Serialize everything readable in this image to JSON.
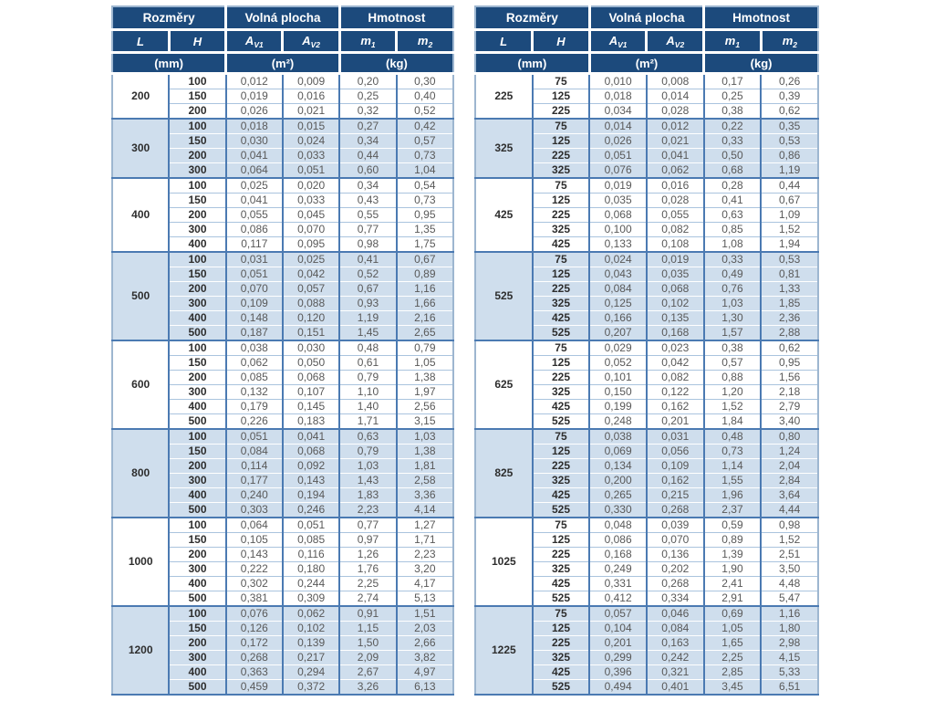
{
  "colors": {
    "header_bg": "#1c4a7c",
    "header_text": "#ffffff",
    "row_alt_bg": "#cfdeed",
    "row_bg": "#ffffff",
    "grid_medium": "#4b7ab2",
    "grid_light": "#aac4de",
    "outer_border": "#9db6d0",
    "value_text": "#595959",
    "bold_text": "#2e2e2e"
  },
  "header": {
    "rozmery": "Rozměry",
    "volna_plocha": "Volná plocha",
    "hmotnost": "Hmotnost",
    "l": "L",
    "h": "H",
    "a": "A",
    "sub_v1": "V1",
    "sub_v2": "V2",
    "m": "m",
    "sub_1": "1",
    "sub_2": "2",
    "unit_mm": "(mm)",
    "unit_m2": "(m²)",
    "unit_kg": "(kg)"
  },
  "tables": [
    {
      "side": "left",
      "groups": [
        {
          "l": "200",
          "rows": [
            [
              "100",
              "0,012",
              "0,009",
              "0,20",
              "0,30"
            ],
            [
              "150",
              "0,019",
              "0,016",
              "0,25",
              "0,40"
            ],
            [
              "200",
              "0,026",
              "0,021",
              "0,32",
              "0,52"
            ]
          ]
        },
        {
          "l": "300",
          "rows": [
            [
              "100",
              "0,018",
              "0,015",
              "0,27",
              "0,42"
            ],
            [
              "150",
              "0,030",
              "0,024",
              "0,34",
              "0,57"
            ],
            [
              "200",
              "0,041",
              "0,033",
              "0,44",
              "0,73"
            ],
            [
              "300",
              "0,064",
              "0,051",
              "0,60",
              "1,04"
            ]
          ]
        },
        {
          "l": "400",
          "rows": [
            [
              "100",
              "0,025",
              "0,020",
              "0,34",
              "0,54"
            ],
            [
              "150",
              "0,041",
              "0,033",
              "0,43",
              "0,73"
            ],
            [
              "200",
              "0,055",
              "0,045",
              "0,55",
              "0,95"
            ],
            [
              "300",
              "0,086",
              "0,070",
              "0,77",
              "1,35"
            ],
            [
              "400",
              "0,117",
              "0,095",
              "0,98",
              "1,75"
            ]
          ]
        },
        {
          "l": "500",
          "rows": [
            [
              "100",
              "0,031",
              "0,025",
              "0,41",
              "0,67"
            ],
            [
              "150",
              "0,051",
              "0,042",
              "0,52",
              "0,89"
            ],
            [
              "200",
              "0,070",
              "0,057",
              "0,67",
              "1,16"
            ],
            [
              "300",
              "0,109",
              "0,088",
              "0,93",
              "1,66"
            ],
            [
              "400",
              "0,148",
              "0,120",
              "1,19",
              "2,16"
            ],
            [
              "500",
              "0,187",
              "0,151",
              "1,45",
              "2,65"
            ]
          ]
        },
        {
          "l": "600",
          "rows": [
            [
              "100",
              "0,038",
              "0,030",
              "0,48",
              "0,79"
            ],
            [
              "150",
              "0,062",
              "0,050",
              "0,61",
              "1,05"
            ],
            [
              "200",
              "0,085",
              "0,068",
              "0,79",
              "1,38"
            ],
            [
              "300",
              "0,132",
              "0,107",
              "1,10",
              "1,97"
            ],
            [
              "400",
              "0,179",
              "0,145",
              "1,40",
              "2,56"
            ],
            [
              "500",
              "0,226",
              "0,183",
              "1,71",
              "3,15"
            ]
          ]
        },
        {
          "l": "800",
          "rows": [
            [
              "100",
              "0,051",
              "0,041",
              "0,63",
              "1,03"
            ],
            [
              "150",
              "0,084",
              "0,068",
              "0,79",
              "1,38"
            ],
            [
              "200",
              "0,114",
              "0,092",
              "1,03",
              "1,81"
            ],
            [
              "300",
              "0,177",
              "0,143",
              "1,43",
              "2,58"
            ],
            [
              "400",
              "0,240",
              "0,194",
              "1,83",
              "3,36"
            ],
            [
              "500",
              "0,303",
              "0,246",
              "2,23",
              "4,14"
            ]
          ]
        },
        {
          "l": "1000",
          "rows": [
            [
              "100",
              "0,064",
              "0,051",
              "0,77",
              "1,27"
            ],
            [
              "150",
              "0,105",
              "0,085",
              "0,97",
              "1,71"
            ],
            [
              "200",
              "0,143",
              "0,116",
              "1,26",
              "2,23"
            ],
            [
              "300",
              "0,222",
              "0,180",
              "1,76",
              "3,20"
            ],
            [
              "400",
              "0,302",
              "0,244",
              "2,25",
              "4,17"
            ],
            [
              "500",
              "0,381",
              "0,309",
              "2,74",
              "5,13"
            ]
          ]
        },
        {
          "l": "1200",
          "rows": [
            [
              "100",
              "0,076",
              "0,062",
              "0,91",
              "1,51"
            ],
            [
              "150",
              "0,126",
              "0,102",
              "1,15",
              "2,03"
            ],
            [
              "200",
              "0,172",
              "0,139",
              "1,50",
              "2,66"
            ],
            [
              "300",
              "0,268",
              "0,217",
              "2,09",
              "3,82"
            ],
            [
              "400",
              "0,363",
              "0,294",
              "2,67",
              "4,97"
            ],
            [
              "500",
              "0,459",
              "0,372",
              "3,26",
              "6,13"
            ]
          ]
        }
      ]
    },
    {
      "side": "right",
      "groups": [
        {
          "l": "225",
          "rows": [
            [
              "75",
              "0,010",
              "0,008",
              "0,17",
              "0,26"
            ],
            [
              "125",
              "0,018",
              "0,014",
              "0,25",
              "0,39"
            ],
            [
              "225",
              "0,034",
              "0,028",
              "0,38",
              "0,62"
            ]
          ]
        },
        {
          "l": "325",
          "rows": [
            [
              "75",
              "0,014",
              "0,012",
              "0,22",
              "0,35"
            ],
            [
              "125",
              "0,026",
              "0,021",
              "0,33",
              "0,53"
            ],
            [
              "225",
              "0,051",
              "0,041",
              "0,50",
              "0,86"
            ],
            [
              "325",
              "0,076",
              "0,062",
              "0,68",
              "1,19"
            ]
          ]
        },
        {
          "l": "425",
          "rows": [
            [
              "75",
              "0,019",
              "0,016",
              "0,28",
              "0,44"
            ],
            [
              "125",
              "0,035",
              "0,028",
              "0,41",
              "0,67"
            ],
            [
              "225",
              "0,068",
              "0,055",
              "0,63",
              "1,09"
            ],
            [
              "325",
              "0,100",
              "0,082",
              "0,85",
              "1,52"
            ],
            [
              "425",
              "0,133",
              "0,108",
              "1,08",
              "1,94"
            ]
          ]
        },
        {
          "l": "525",
          "rows": [
            [
              "75",
              "0,024",
              "0,019",
              "0,33",
              "0,53"
            ],
            [
              "125",
              "0,043",
              "0,035",
              "0,49",
              "0,81"
            ],
            [
              "225",
              "0,084",
              "0,068",
              "0,76",
              "1,33"
            ],
            [
              "325",
              "0,125",
              "0,102",
              "1,03",
              "1,85"
            ],
            [
              "425",
              "0,166",
              "0,135",
              "1,30",
              "2,36"
            ],
            [
              "525",
              "0,207",
              "0,168",
              "1,57",
              "2,88"
            ]
          ]
        },
        {
          "l": "625",
          "rows": [
            [
              "75",
              "0,029",
              "0,023",
              "0,38",
              "0,62"
            ],
            [
              "125",
              "0,052",
              "0,042",
              "0,57",
              "0,95"
            ],
            [
              "225",
              "0,101",
              "0,082",
              "0,88",
              "1,56"
            ],
            [
              "325",
              "0,150",
              "0,122",
              "1,20",
              "2,18"
            ],
            [
              "425",
              "0,199",
              "0,162",
              "1,52",
              "2,79"
            ],
            [
              "525",
              "0,248",
              "0,201",
              "1,84",
              "3,40"
            ]
          ]
        },
        {
          "l": "825",
          "rows": [
            [
              "75",
              "0,038",
              "0,031",
              "0,48",
              "0,80"
            ],
            [
              "125",
              "0,069",
              "0,056",
              "0,73",
              "1,24"
            ],
            [
              "225",
              "0,134",
              "0,109",
              "1,14",
              "2,04"
            ],
            [
              "325",
              "0,200",
              "0,162",
              "1,55",
              "2,84"
            ],
            [
              "425",
              "0,265",
              "0,215",
              "1,96",
              "3,64"
            ],
            [
              "525",
              "0,330",
              "0,268",
              "2,37",
              "4,44"
            ]
          ]
        },
        {
          "l": "1025",
          "rows": [
            [
              "75",
              "0,048",
              "0,039",
              "0,59",
              "0,98"
            ],
            [
              "125",
              "0,086",
              "0,070",
              "0,89",
              "1,52"
            ],
            [
              "225",
              "0,168",
              "0,136",
              "1,39",
              "2,51"
            ],
            [
              "325",
              "0,249",
              "0,202",
              "1,90",
              "3,50"
            ],
            [
              "425",
              "0,331",
              "0,268",
              "2,41",
              "4,48"
            ],
            [
              "525",
              "0,412",
              "0,334",
              "2,91",
              "5,47"
            ]
          ]
        },
        {
          "l": "1225",
          "rows": [
            [
              "75",
              "0,057",
              "0,046",
              "0,69",
              "1,16"
            ],
            [
              "125",
              "0,104",
              "0,084",
              "1,05",
              "1,80"
            ],
            [
              "225",
              "0,201",
              "0,163",
              "1,65",
              "2,98"
            ],
            [
              "325",
              "0,299",
              "0,242",
              "2,25",
              "4,15"
            ],
            [
              "425",
              "0,396",
              "0,321",
              "2,85",
              "5,33"
            ],
            [
              "525",
              "0,494",
              "0,401",
              "3,45",
              "6,51"
            ]
          ]
        }
      ]
    }
  ]
}
